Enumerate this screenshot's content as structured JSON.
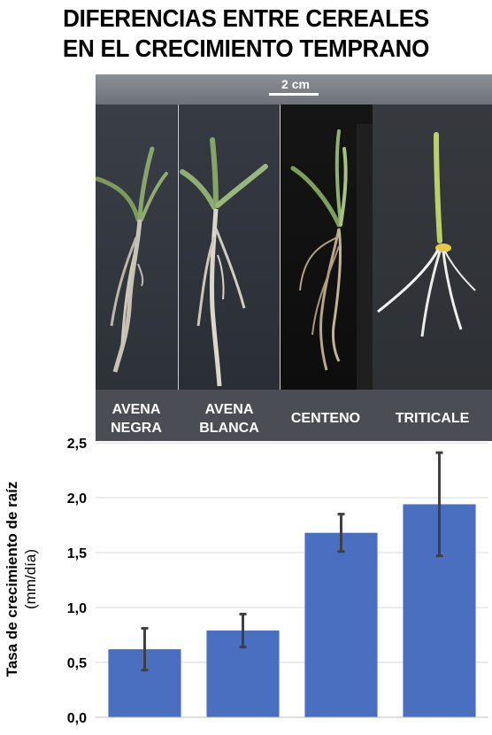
{
  "figure": {
    "title_line1": "DIFERENCIAS ENTRE CEREALES",
    "title_line2": "EN EL CRECIMIENTO TEMPRANO",
    "scale_bar_label": "2 cm",
    "panels": [
      {
        "label_line1": "AVENA",
        "label_line2": "NEGRA"
      },
      {
        "label_line1": "AVENA",
        "label_line2": "BLANCA"
      },
      {
        "label_line1": "CENTENO",
        "label_line2": ""
      },
      {
        "label_line1": "TRITICALE",
        "label_line2": ""
      }
    ]
  },
  "chart_data": {
    "type": "bar",
    "categories": [
      "AVENA NEGRA",
      "AVENA BLANCA",
      "CENTENO",
      "TRITICALE"
    ],
    "values": [
      0.62,
      0.79,
      1.68,
      1.94
    ],
    "error": [
      0.19,
      0.15,
      0.17,
      0.47
    ],
    "ylabel": "Tasa de crecimiento de raíz",
    "ylabel_unit": "(mm/día)",
    "ylim": [
      0,
      2.5
    ],
    "yticks": [
      0,
      0.5,
      1.0,
      1.5,
      2.0,
      2.5
    ],
    "ytick_labels": [
      "0,0",
      "0,5",
      "1,0",
      "1,5",
      "2,0",
      "2,5"
    ],
    "grid": true,
    "bar_color": "#4a6fc1",
    "error_color": "#404040"
  }
}
